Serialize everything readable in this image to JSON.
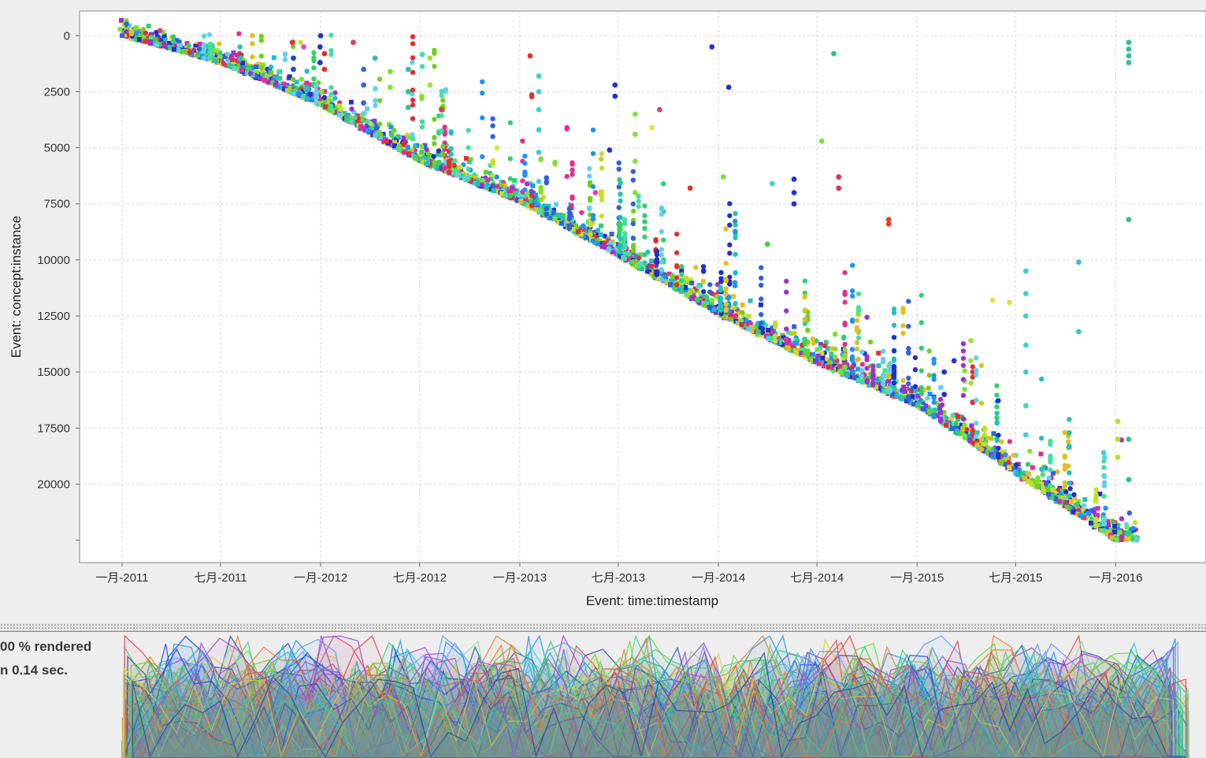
{
  "chart_data": {
    "type": "scatter",
    "xlabel": "Event: time:timestamp",
    "ylabel": "Event: concept:instance",
    "x_ticks": [
      "一月-2011",
      "七月-2011",
      "一月-2012",
      "七月-2012",
      "一月-2013",
      "七月-2013",
      "一月-2014",
      "七月-2014",
      "一月-2015",
      "七月-2015",
      "一月-2016"
    ],
    "x_tick_dates": [
      "2011-01-01",
      "2011-07-01",
      "2012-01-01",
      "2012-07-01",
      "2013-01-01",
      "2013-07-01",
      "2014-01-01",
      "2014-07-01",
      "2015-01-01",
      "2015-07-01",
      "2016-01-01"
    ],
    "xlim": [
      "2010-10-15",
      "2016-06-15"
    ],
    "y_ticks": [
      0,
      2500,
      5000,
      7500,
      10000,
      12500,
      15000,
      17500,
      20000
    ],
    "ylim": [
      23500,
      -1100
    ],
    "y_inverted": true,
    "grid": true,
    "trend": [
      {
        "date": "2011-01-01",
        "instance": 0
      },
      {
        "date": "2011-07-01",
        "instance": 1200
      },
      {
        "date": "2012-01-01",
        "instance": 3100
      },
      {
        "date": "2012-07-01",
        "instance": 5600
      },
      {
        "date": "2013-01-01",
        "instance": 7400
      },
      {
        "date": "2013-07-01",
        "instance": 9800
      },
      {
        "date": "2014-01-01",
        "instance": 12400
      },
      {
        "date": "2014-07-01",
        "instance": 14600
      },
      {
        "date": "2015-01-01",
        "instance": 16500
      },
      {
        "date": "2015-07-01",
        "instance": 19500
      },
      {
        "date": "2016-01-01",
        "instance": 22500
      },
      {
        "date": "2016-02-10",
        "instance": 22500
      }
    ],
    "outliers": [
      {
        "date": "2012-01-01",
        "instance": 0,
        "color": "#2233cc"
      },
      {
        "date": "2011-12-31",
        "instance": 500,
        "color": "#2233cc"
      },
      {
        "date": "2011-12-31",
        "instance": 1200,
        "color": "#2233cc"
      },
      {
        "date": "2012-01-08",
        "instance": 800,
        "color": "#e03030"
      },
      {
        "date": "2012-01-08",
        "instance": 1500,
        "color": "#e03030"
      },
      {
        "date": "2011-11-10",
        "instance": 300,
        "color": "#e03030"
      },
      {
        "date": "2011-12-01",
        "instance": 500,
        "color": "#d050d0"
      },
      {
        "date": "2011-11-12",
        "instance": 1000,
        "color": "#2244cc"
      },
      {
        "date": "2011-11-12",
        "instance": 1500,
        "color": "#2244cc"
      },
      {
        "date": "2012-03-01",
        "instance": 300,
        "color": "#e04060"
      },
      {
        "date": "2012-03-20",
        "instance": 1500,
        "color": "#3366dd"
      },
      {
        "date": "2012-03-20",
        "instance": 2200,
        "color": "#3366dd"
      },
      {
        "date": "2012-03-20",
        "instance": 3000,
        "color": "#3366dd"
      },
      {
        "date": "2012-04-10",
        "instance": 1000,
        "color": "#30c0a0"
      },
      {
        "date": "2012-05-08",
        "instance": 1600,
        "color": "#80e040"
      },
      {
        "date": "2012-05-08",
        "instance": 2300,
        "color": "#80e040"
      },
      {
        "date": "2012-06-10",
        "instance": 1500,
        "color": "#30c0a0"
      },
      {
        "date": "2012-06-10",
        "instance": 2500,
        "color": "#30c0a0"
      },
      {
        "date": "2012-06-10",
        "instance": 3200,
        "color": "#30c0a0"
      },
      {
        "date": "2012-07-20",
        "instance": 1000,
        "color": "#a0e040"
      },
      {
        "date": "2012-07-20",
        "instance": 2200,
        "color": "#a0e040"
      },
      {
        "date": "2012-08-10",
        "instance": 3300,
        "color": "#e04050"
      },
      {
        "date": "2013-01-20",
        "instance": 900,
        "color": "#e03030"
      },
      {
        "date": "2013-02-05",
        "instance": 1800,
        "color": "#40d0d0"
      },
      {
        "date": "2013-02-05",
        "instance": 2500,
        "color": "#40d0d0"
      },
      {
        "date": "2013-02-05",
        "instance": 3300,
        "color": "#40d0d0"
      },
      {
        "date": "2013-02-05",
        "instance": 4200,
        "color": "#40d0d0"
      },
      {
        "date": "2013-02-05",
        "instance": 5200,
        "color": "#40d0d0"
      },
      {
        "date": "2013-02-05",
        "instance": 6500,
        "color": "#40d0d0"
      },
      {
        "date": "2012-11-20",
        "instance": 5000,
        "color": "#e0e040"
      },
      {
        "date": "2013-05-20",
        "instance": 7000,
        "color": "#e040a0"
      },
      {
        "date": "2013-06-25",
        "instance": 2200,
        "color": "#2233cc"
      },
      {
        "date": "2013-06-25",
        "instance": 2700,
        "color": "#2233cc"
      },
      {
        "date": "2013-06-15",
        "instance": 5100,
        "color": "#2233cc"
      },
      {
        "date": "2013-08-01",
        "instance": 3500,
        "color": "#80e040"
      },
      {
        "date": "2013-08-01",
        "instance": 4400,
        "color": "#80e040"
      },
      {
        "date": "2013-08-01",
        "instance": 5600,
        "color": "#80e040"
      },
      {
        "date": "2013-08-01",
        "instance": 7000,
        "color": "#80e040"
      },
      {
        "date": "2013-09-01",
        "instance": 4100,
        "color": "#e0e040"
      },
      {
        "date": "2013-09-15",
        "instance": 3300,
        "color": "#e04070"
      },
      {
        "date": "2013-12-20",
        "instance": 500,
        "color": "#2233cc"
      },
      {
        "date": "2014-01-20",
        "instance": 2300,
        "color": "#2233cc"
      },
      {
        "date": "2014-01-10",
        "instance": 6300,
        "color": "#80e040"
      },
      {
        "date": "2013-11-10",
        "instance": 6800,
        "color": "#e03030"
      },
      {
        "date": "2014-04-10",
        "instance": 6600,
        "color": "#40d0d0"
      },
      {
        "date": "2014-05-20",
        "instance": 6400,
        "color": "#2233cc"
      },
      {
        "date": "2014-05-20",
        "instance": 7000,
        "color": "#2233cc"
      },
      {
        "date": "2014-05-20",
        "instance": 7500,
        "color": "#2233cc"
      },
      {
        "date": "2014-08-01",
        "instance": 800,
        "color": "#30c080"
      },
      {
        "date": "2014-07-10",
        "instance": 4700,
        "color": "#80e040"
      },
      {
        "date": "2014-08-10",
        "instance": 6300,
        "color": "#e03050"
      },
      {
        "date": "2014-08-10",
        "instance": 6800,
        "color": "#e03050"
      },
      {
        "date": "2014-04-01",
        "instance": 9300,
        "color": "#40d040"
      },
      {
        "date": "2014-11-10",
        "instance": 8200,
        "color": "#e04030"
      },
      {
        "date": "2014-11-10",
        "instance": 8400,
        "color": "#e04030"
      },
      {
        "date": "2015-07-20",
        "instance": 10500,
        "color": "#40d0d0"
      },
      {
        "date": "2015-07-20",
        "instance": 11500,
        "color": "#40d0d0"
      },
      {
        "date": "2015-07-20",
        "instance": 12500,
        "color": "#40d0d0"
      },
      {
        "date": "2015-07-20",
        "instance": 13800,
        "color": "#40d0d0"
      },
      {
        "date": "2015-07-20",
        "instance": 15000,
        "color": "#40d0d0"
      },
      {
        "date": "2015-07-20",
        "instance": 16500,
        "color": "#40d0d0"
      },
      {
        "date": "2015-07-20",
        "instance": 17800,
        "color": "#40d0d0"
      },
      {
        "date": "2015-05-20",
        "instance": 11800,
        "color": "#e0e040"
      },
      {
        "date": "2015-06-20",
        "instance": 11900,
        "color": "#e0e040"
      },
      {
        "date": "2015-10-25",
        "instance": 10100,
        "color": "#40c0c0"
      },
      {
        "date": "2015-10-25",
        "instance": 13200,
        "color": "#40c0c0"
      },
      {
        "date": "2015-02-20",
        "instance": 15000,
        "color": "#2233cc"
      },
      {
        "date": "2015-02-20",
        "instance": 16000,
        "color": "#2233cc"
      },
      {
        "date": "2015-03-10",
        "instance": 14500,
        "color": "#2233cc"
      },
      {
        "date": "2015-04-10",
        "instance": 13600,
        "color": "#a0e040"
      },
      {
        "date": "2015-04-10",
        "instance": 14500,
        "color": "#a0e040"
      },
      {
        "date": "2015-04-10",
        "instance": 15500,
        "color": "#a0e040"
      },
      {
        "date": "2016-01-25",
        "instance": 300,
        "color": "#30c0a0"
      },
      {
        "date": "2016-01-25",
        "instance": 600,
        "color": "#30c0a0"
      },
      {
        "date": "2016-01-25",
        "instance": 900,
        "color": "#30c0a0"
      },
      {
        "date": "2016-01-25",
        "instance": 1200,
        "color": "#30c0a0"
      },
      {
        "date": "2016-01-25",
        "instance": 8200,
        "color": "#30c080"
      },
      {
        "date": "2016-01-25",
        "instance": 18000,
        "color": "#30c080"
      },
      {
        "date": "2016-01-25",
        "instance": 19800,
        "color": "#30c080"
      },
      {
        "date": "2016-01-05",
        "instance": 17200,
        "color": "#c0e020"
      },
      {
        "date": "2016-01-05",
        "instance": 18000,
        "color": "#c0e020"
      },
      {
        "date": "2016-01-05",
        "instance": 18800,
        "color": "#c0e020"
      },
      {
        "date": "2015-12-10",
        "instance": 18600,
        "color": "#40d0d0"
      }
    ]
  },
  "status": {
    "rendered": "00 % rendered",
    "time": "n 0.14 sec."
  },
  "density_chart": {
    "type": "area",
    "palette": [
      "#1f4fd0",
      "#2ec7c9",
      "#6ad44a",
      "#d84b4b",
      "#e0d040",
      "#a04ad0",
      "#2a9ae0",
      "#40d080",
      "#e08040",
      "#3050a0",
      "#90e0a0",
      "#60a0f0"
    ],
    "profile_dates": [
      "2011-01-01",
      "2016-04-01"
    ]
  }
}
